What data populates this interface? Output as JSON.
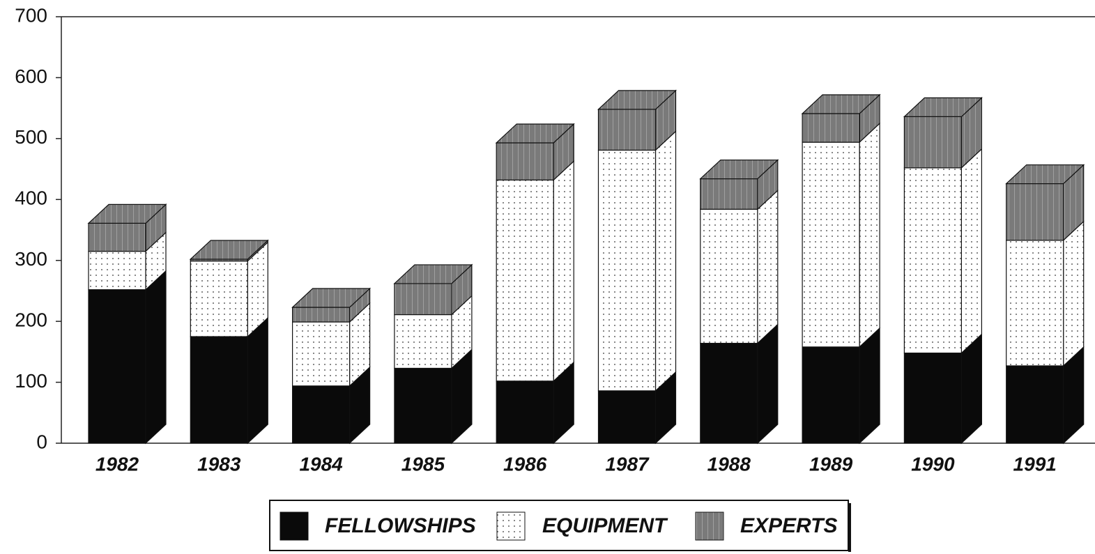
{
  "chart_data": {
    "type": "stacked_bar_3d",
    "categories": [
      "1982",
      "1983",
      "1984",
      "1985",
      "1986",
      "1987",
      "1988",
      "1989",
      "1990",
      "1991"
    ],
    "series": [
      {
        "name": "FELLOWSHIPS",
        "color": "#0a0a0a",
        "values": [
          252,
          175,
          94,
          123,
          102,
          86,
          164,
          158,
          148,
          127
        ]
      },
      {
        "name": "EQUIPMENT",
        "color": "#ffffff",
        "values": [
          63,
          124,
          105,
          88,
          330,
          395,
          220,
          336,
          304,
          206
        ]
      },
      {
        "name": "EXPERTS",
        "color": "#a0a0a0",
        "values": [
          46,
          3,
          24,
          51,
          61,
          67,
          50,
          47,
          84,
          93
        ]
      }
    ],
    "ylim": [
      0,
      700
    ],
    "yticks": [
      0,
      100,
      200,
      300,
      400,
      500,
      600,
      700
    ],
    "legend": "bottom"
  }
}
